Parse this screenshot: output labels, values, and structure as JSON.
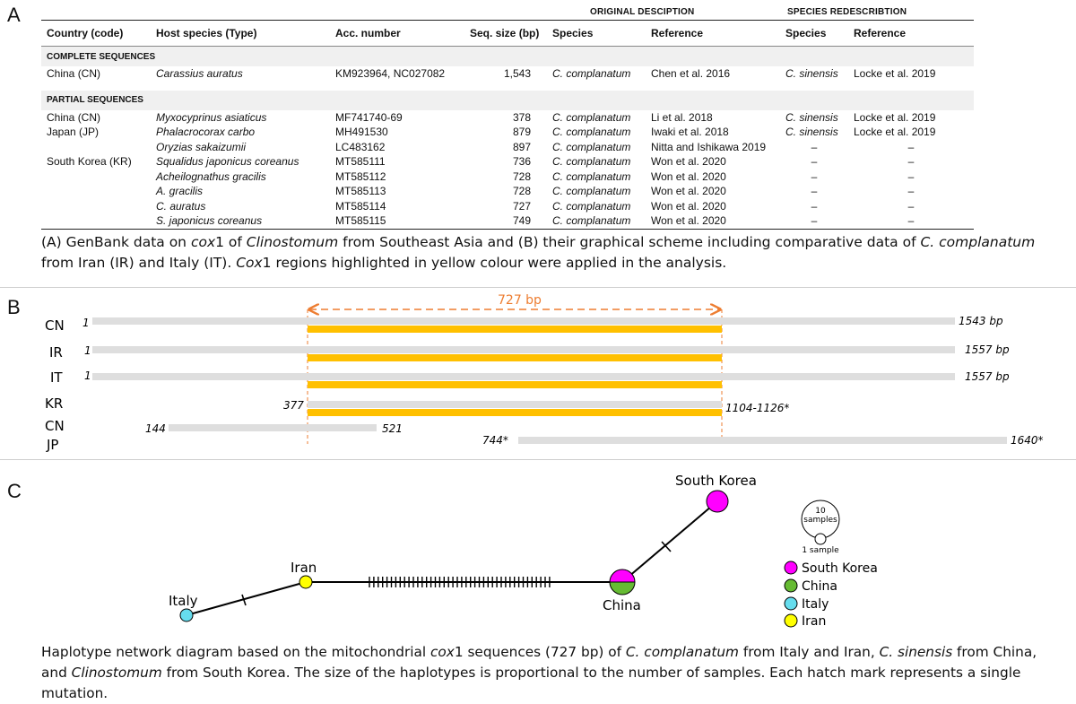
{
  "panels": {
    "a": "A",
    "b": "B",
    "c": "C"
  },
  "tableA": {
    "group_headers": {
      "original": "ORIGINAL DESCIPTION",
      "redescription": "SPECIES REDESCRIBTION"
    },
    "columns": [
      "Country (code)",
      "Host species (Type)",
      "Acc. number",
      "Seq. size (bp)",
      "Species",
      "Reference",
      "Species",
      "Reference"
    ],
    "section_complete": "COMPLETE SEQUENCES",
    "section_partial": "PARTIAL SEQUENCES",
    "complete_rows": [
      [
        "China (CN)",
        "Carassius auratus",
        "KM923964,  NC027082",
        "1,543",
        "C. complanatum",
        "Chen et al. 2016",
        "C. sinensis",
        "Locke et al. 2019"
      ]
    ],
    "partial_rows": [
      [
        "China (CN)",
        "Myxocyprinus asiaticus",
        "MF741740-69",
        "378",
        "C. complanatum",
        "Li et al. 2018",
        "C. sinensis",
        "Locke et al. 2019"
      ],
      [
        "Japan (JP)",
        "Phalacrocorax carbo",
        "MH491530",
        "879",
        "C. complanatum",
        "Iwaki et al. 2018",
        "C. sinensis",
        "Locke et al. 2019"
      ],
      [
        "",
        "Oryzias sakaizumii",
        "LC483162",
        "897",
        "C. complanatum",
        "Nitta and Ishikawa 2019",
        "–",
        "–"
      ],
      [
        "South Korea (KR)",
        "Squalidus japonicus coreanus",
        "MT585111",
        "736",
        "C. complanatum",
        "Won et al. 2020",
        "–",
        "–"
      ],
      [
        "",
        "Acheilognathus gracilis",
        "MT585112",
        "728",
        "C. complanatum",
        "Won et al. 2020",
        "–",
        "–"
      ],
      [
        "",
        "A. gracilis",
        "MT585113",
        "728",
        "C. complanatum",
        "Won et al. 2020",
        "–",
        "–"
      ],
      [
        "",
        "C. auratus",
        "MT585114",
        "727",
        "C. complanatum",
        "Won et al. 2020",
        "–",
        "–"
      ],
      [
        "",
        "S. japonicus coreanus",
        "MT585115",
        "749",
        "C. complanatum",
        "Won et al. 2020",
        "–",
        "–"
      ]
    ]
  },
  "captionA": {
    "p1": "(A) GenBank data on ",
    "cox": "cox",
    "p2": "1 of ",
    "genus": "Clinostomum",
    "p3": " from Southeast Asia and (B) their graphical scheme including comparative data of ",
    "species": "C. complanatum",
    "p4": " from Iran (IR) and Italy (IT). ",
    "cox2": "Cox",
    "p5": "1 regions highlighted in yellow colour were applied in the analysis."
  },
  "panelB": {
    "span_label": "727 bp",
    "tracks": [
      {
        "code": "CN",
        "start": "1",
        "end": "1543 bp"
      },
      {
        "code": "IR",
        "start": "1",
        "end": "1557 bp"
      },
      {
        "code": "IT",
        "start": "1",
        "end": "1557 bp"
      },
      {
        "code": "KR",
        "start": "377",
        "end": "1104-1126*"
      },
      {
        "code": "CN",
        "start": "144",
        "end": "521"
      },
      {
        "code": "JP",
        "start": "744*",
        "end": "1640*"
      }
    ],
    "colors": {
      "bar": "#dedede",
      "highlight": "#ffc000",
      "accent": "#ed7d31"
    }
  },
  "panelC": {
    "nodes": {
      "south_korea": "South Korea",
      "china": "China",
      "iran": "Iran",
      "italy": "Italy"
    },
    "legend": {
      "size_top_1": "10",
      "size_top_2": "samples",
      "size_bottom": "1 sample",
      "items": [
        {
          "label": "South Korea",
          "color": "#ff00ff"
        },
        {
          "label": "China",
          "color": "#66bb33"
        },
        {
          "label": "Italy",
          "color": "#66ddee"
        },
        {
          "label": "Iran",
          "color": "#ffff00"
        }
      ]
    }
  },
  "captionC": {
    "p1": "Haplotype network diagram based on the mitochondrial ",
    "cox": "cox",
    "p2": "1 sequences (727 bp) of ",
    "sp1": "C. complanatum",
    "p3": " from Italy and Iran, ",
    "sp2": "C. sinensis",
    "p4": " from China,",
    "p5": "and ",
    "genus": "Clinostomum",
    "p6": " from South Korea. The size of the haplotypes is proportional to the number of samples. Each hatch mark represents a single mutation."
  }
}
